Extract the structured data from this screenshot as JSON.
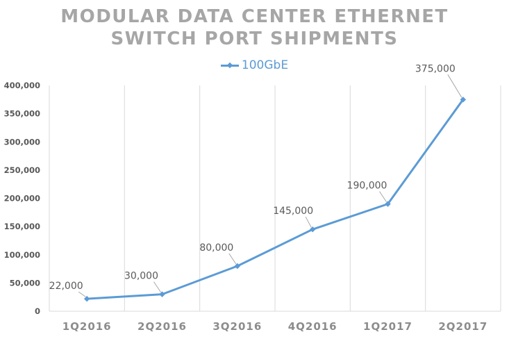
{
  "chart_data": {
    "type": "line",
    "title_lines": [
      "MODULAR DATA CENTER ETHERNET",
      "SWITCH PORT SHIPMENTS"
    ],
    "categories": [
      "1Q2016",
      "2Q2016",
      "3Q2016",
      "4Q2016",
      "1Q2017",
      "2Q2017"
    ],
    "series": [
      {
        "name": "100GbE",
        "values": [
          22000,
          30000,
          80000,
          145000,
          190000,
          375000
        ]
      }
    ],
    "data_labels": [
      "22,000",
      "30,000",
      "80,000",
      "145,000",
      "190,000",
      "375,000"
    ],
    "yticks": [
      "0",
      "50,000",
      "100,000",
      "150,000",
      "200,000",
      "250,000",
      "300,000",
      "350,000",
      "400,000"
    ],
    "ylim": [
      0,
      400000
    ],
    "grid": "vertical",
    "legend_position": "top-center",
    "colors": {
      "series": "#5b9bd5",
      "title": "#a6a6a6",
      "grid": "#d9d9d9",
      "axis_text": "#595959",
      "category_text": "#8c8c8c"
    }
  }
}
